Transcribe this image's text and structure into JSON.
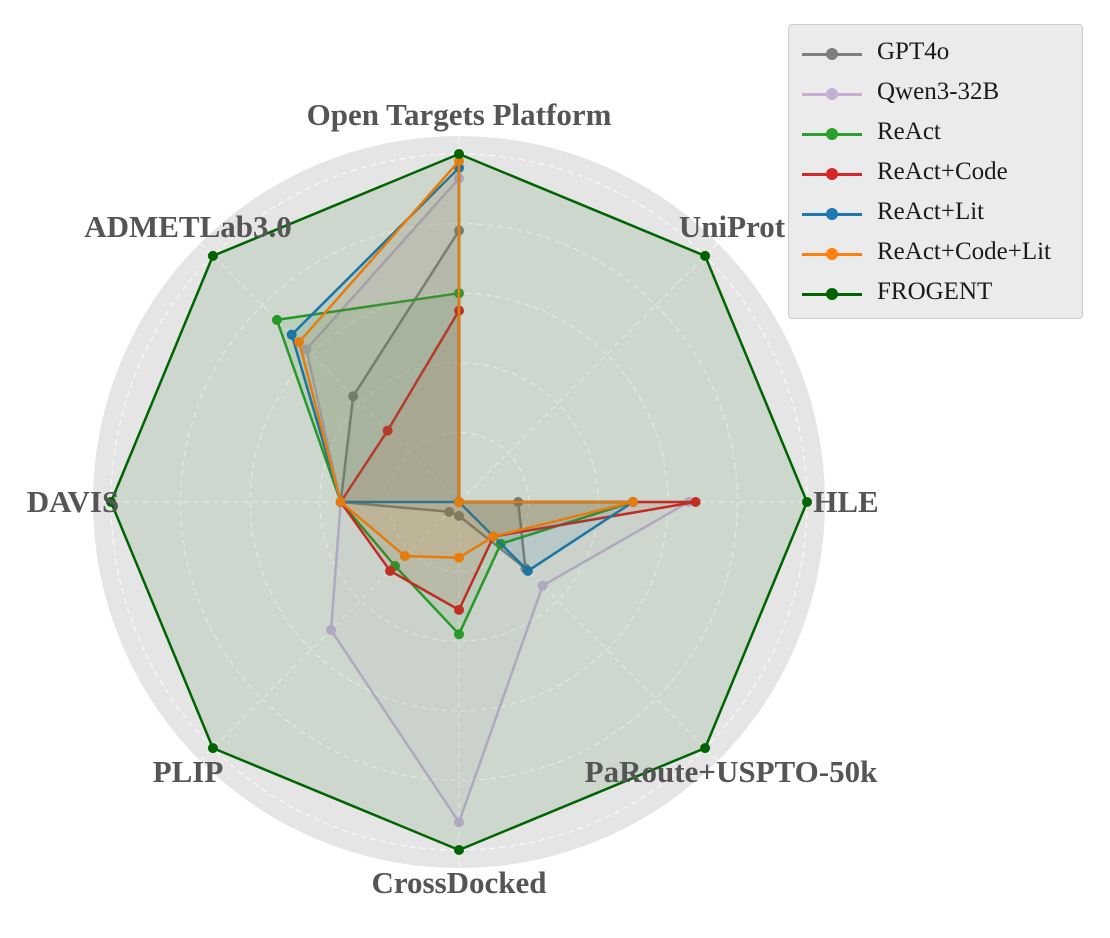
{
  "chart_data": {
    "type": "radar",
    "axes": [
      "Open Targets Platform",
      "UniProt",
      "HLE",
      "PaRoute+USPTO-50k",
      "CrossDocked",
      "PLIP",
      "DAVIS",
      "ADMETLab3.0"
    ],
    "rlim": [
      0,
      1
    ],
    "grid": true,
    "legend_position": "top-right",
    "series": [
      {
        "name": "GPT4o",
        "values": [
          0.78,
          0.0,
          0.17,
          0.27,
          0.04,
          0.04,
          0.34,
          0.43
        ],
        "color": "#7f7f7f"
      },
      {
        "name": "Qwen3-32B",
        "values": [
          0.93,
          0.0,
          0.66,
          0.34,
          0.92,
          0.52,
          0.34,
          0.62
        ],
        "color": "#c5b0d5"
      },
      {
        "name": "ReAct",
        "values": [
          0.6,
          0.0,
          0.5,
          0.17,
          0.38,
          0.26,
          0.34,
          0.74
        ],
        "color": "#2ca02c"
      },
      {
        "name": "ReAct+Code",
        "values": [
          0.55,
          0.0,
          0.68,
          0.14,
          0.31,
          0.28,
          0.34,
          0.29
        ],
        "color": "#d62728"
      },
      {
        "name": "ReAct+Lit",
        "values": [
          0.96,
          0.0,
          0.5,
          0.28,
          0.0,
          0.0,
          0.34,
          0.68
        ],
        "color": "#1f77b4"
      },
      {
        "name": "ReAct+Code+Lit",
        "values": [
          0.98,
          0.0,
          0.5,
          0.14,
          0.16,
          0.22,
          0.34,
          0.65
        ],
        "color": "#ff7f0e"
      },
      {
        "name": "FROGENT",
        "values": [
          1.0,
          1.0,
          1.0,
          1.0,
          1.0,
          1.0,
          1.0,
          1.0
        ],
        "color": "#006400"
      }
    ]
  }
}
